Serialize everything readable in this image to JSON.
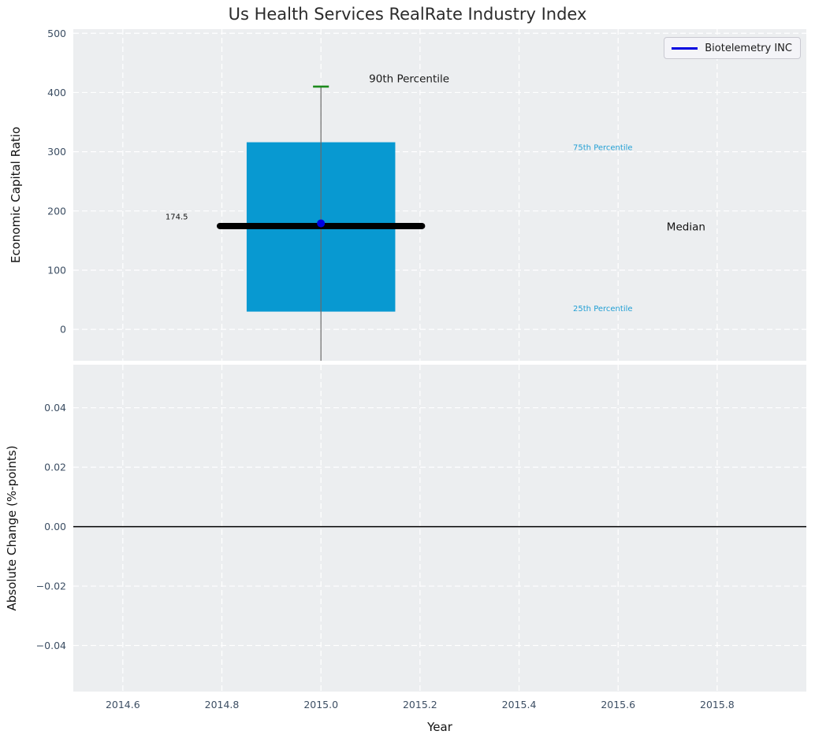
{
  "chart_data": {
    "type": "boxplot",
    "title": "Us Health Services RealRate Industry Index",
    "xlabel": "Year",
    "xlim": [
      2014.5,
      2015.98
    ],
    "xticks": [
      {
        "v": 2014.6,
        "label": "2014.6"
      },
      {
        "v": 2014.8,
        "label": "2014.8"
      },
      {
        "v": 2015.0,
        "label": "2015.0"
      },
      {
        "v": 2015.2,
        "label": "2015.2"
      },
      {
        "v": 2015.4,
        "label": "2015.4"
      },
      {
        "v": 2015.6,
        "label": "2015.6"
      },
      {
        "v": 2015.8,
        "label": "2015.8"
      }
    ],
    "grid": "white dashed, on",
    "legend_position": "upper right",
    "subplots": [
      {
        "ylabel": "Economic Capital Ratio",
        "ylim": [
          -53,
          507
        ],
        "yticks": [
          {
            "v": 0,
            "label": "0"
          },
          {
            "v": 100,
            "label": "100"
          },
          {
            "v": 200,
            "label": "200"
          },
          {
            "v": 300,
            "label": "300"
          },
          {
            "v": 400,
            "label": "400"
          },
          {
            "v": 500,
            "label": "500"
          }
        ],
        "box": {
          "x": 2015.0,
          "p90": 410,
          "p75": 316,
          "median": 174.5,
          "p25": 30,
          "whisker_low_clipped_below_axis": true,
          "box_half_width": 0.15,
          "median_line_half_width": 0.204,
          "cap_half_width": 0.016
        },
        "company_point": {
          "label": "Biotelemetry INC",
          "x": 2015.0,
          "y": 179
        },
        "annotations": [
          {
            "text": "90th Percentile",
            "x": 2015.097,
            "y": 423,
            "color": "#1a1a1a",
            "font_size": 13.5
          },
          {
            "text": "174.5",
            "x": 2014.686,
            "y": 192,
            "color": "#111111",
            "font_size": 10
          },
          {
            "text": "75th Percentile",
            "x": 2015.509,
            "y": 309,
            "color": "#219fd4",
            "font_size": 10
          },
          {
            "text": "Median",
            "x": 2015.698,
            "y": 173,
            "color": "#111111",
            "font_size": 13.5
          },
          {
            "text": "25th Percentile",
            "x": 2015.509,
            "y": 37,
            "color": "#219fd4",
            "font_size": 10
          }
        ],
        "legend": {
          "label": "Biotelemetry INC",
          "line_color": "#0000e0"
        }
      },
      {
        "ylabel": "Absolute Change (%-points)",
        "ylim": [
          -0.0555,
          0.0545
        ],
        "yticks": [
          {
            "v": 0.04,
            "label": "0.04"
          },
          {
            "v": 0.02,
            "label": "0.02"
          },
          {
            "v": 0.0,
            "label": "0.00"
          },
          {
            "v": -0.02,
            "label": "−0.02"
          },
          {
            "v": -0.04,
            "label": "−0.04"
          }
        ],
        "zero_line": 0.0
      }
    ]
  },
  "colors": {
    "figure_bg": "#ffffff",
    "axes_bg": "#eceef0",
    "grid": "#ffffff",
    "box_fill": "#0899d1",
    "whisker": "#6a6a6a",
    "cap_green": "#1c8a1c",
    "median_line": "#000000",
    "point_blue": "#0000e0",
    "zero_line": "#000000",
    "tick_label": "#3c4e63",
    "axis_label": "#111111",
    "title": "#2b2b2b",
    "cyan_label": "#219fd4",
    "legend_bg": "#f4f4f8",
    "legend_border": "#c9c9d1"
  }
}
